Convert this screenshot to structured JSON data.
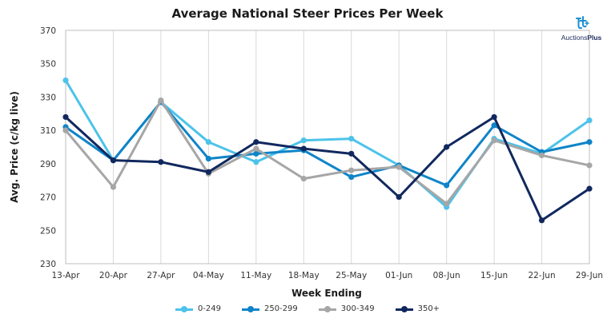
{
  "chart_data": {
    "type": "line",
    "title": "Average National Steer Prices Per Week",
    "xlabel": "Week Ending",
    "ylabel": "Avg. Price (c/kg live)",
    "ylim": [
      230,
      370
    ],
    "yticks": [
      230,
      250,
      270,
      290,
      310,
      330,
      350,
      370
    ],
    "categories": [
      "13-Apr",
      "20-Apr",
      "27-Apr",
      "04-May",
      "11-May",
      "18-May",
      "25-May",
      "01-Jun",
      "08-Jun",
      "15-Jun",
      "22-Jun",
      "29-Jun"
    ],
    "grid": "vertical",
    "legend_position": "bottom",
    "series": [
      {
        "name": "0-249",
        "color": "#4dc3ea",
        "values": [
          340,
          292,
          327,
          303,
          291,
          304,
          305,
          289,
          264,
          305,
          296,
          316
        ]
      },
      {
        "name": "250-299",
        "color": "#0f84c8",
        "values": [
          312,
          292,
          327,
          293,
          296,
          298,
          282,
          289,
          277,
          313,
          297,
          303
        ]
      },
      {
        "name": "300-349",
        "color": "#a6a6a6",
        "values": [
          310,
          276,
          328,
          284,
          299,
          281,
          286,
          288,
          266,
          304,
          295,
          289
        ]
      },
      {
        "name": "350+",
        "color": "#11285e",
        "values": [
          318,
          292,
          291,
          285,
          303,
          299,
          296,
          270,
          300,
          318,
          256,
          275
        ]
      }
    ]
  },
  "brand": {
    "text_regular": "Auctions",
    "text_bold": "Plus",
    "icon": "auctionsplus-logo-icon"
  }
}
